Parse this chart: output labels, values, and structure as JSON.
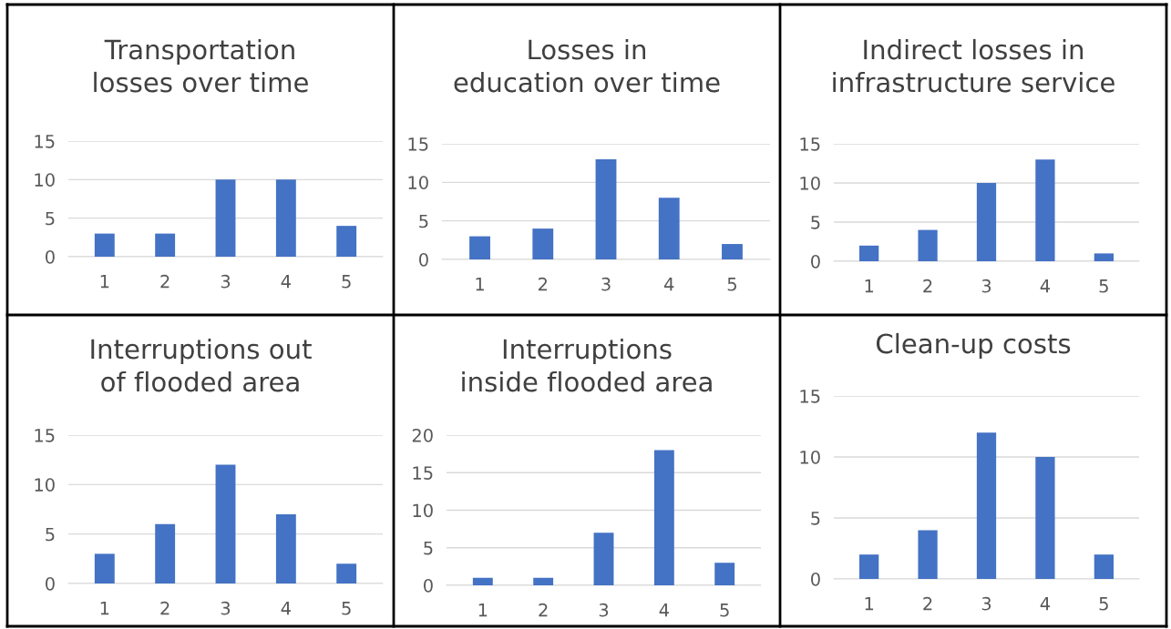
{
  "chart_data": [
    {
      "type": "bar",
      "title": "Transportation losses over time",
      "categories": [
        "1",
        "2",
        "3",
        "4",
        "5"
      ],
      "values": [
        3,
        3,
        10,
        10,
        4
      ],
      "color": "#4472c4",
      "ylim": [
        0,
        15
      ],
      "yticks": [
        0,
        5,
        10,
        15
      ],
      "grid": "y"
    },
    {
      "type": "bar",
      "title": "Losses in education over time",
      "categories": [
        "1",
        "2",
        "3",
        "4",
        "5"
      ],
      "values": [
        3,
        4,
        13,
        8,
        2
      ],
      "color": "#4472c4",
      "ylim": [
        0,
        15
      ],
      "yticks": [
        0,
        5,
        10,
        15
      ],
      "grid": "y"
    },
    {
      "type": "bar",
      "title": "Indirect losses in infrastructure service",
      "categories": [
        "1",
        "2",
        "3",
        "4",
        "5"
      ],
      "values": [
        2,
        4,
        10,
        13,
        1
      ],
      "color": "#4472c4",
      "ylim": [
        0,
        15
      ],
      "yticks": [
        0,
        5,
        10,
        15
      ],
      "grid": "y"
    },
    {
      "type": "bar",
      "title": "Interruptions out of flooded area",
      "categories": [
        "1",
        "2",
        "3",
        "4",
        "5"
      ],
      "values": [
        3,
        6,
        12,
        7,
        2
      ],
      "color": "#4472c4",
      "ylim": [
        0,
        15
      ],
      "yticks": [
        0,
        5,
        10,
        15
      ],
      "grid": "y"
    },
    {
      "type": "bar",
      "title": "Interruptions inside flooded area",
      "categories": [
        "1",
        "2",
        "3",
        "4",
        "5"
      ],
      "values": [
        1,
        1,
        7,
        18,
        3
      ],
      "color": "#4472c4",
      "ylim": [
        0,
        20
      ],
      "yticks": [
        0,
        5,
        10,
        15,
        20
      ],
      "grid": "y"
    },
    {
      "type": "bar",
      "title": "Clean-up costs",
      "categories": [
        "1",
        "2",
        "3",
        "4",
        "5"
      ],
      "values": [
        2,
        4,
        12,
        10,
        2
      ],
      "color": "#4472c4",
      "ylim": [
        0,
        15
      ],
      "yticks": [
        0,
        5,
        10,
        15
      ],
      "grid": "y"
    }
  ]
}
